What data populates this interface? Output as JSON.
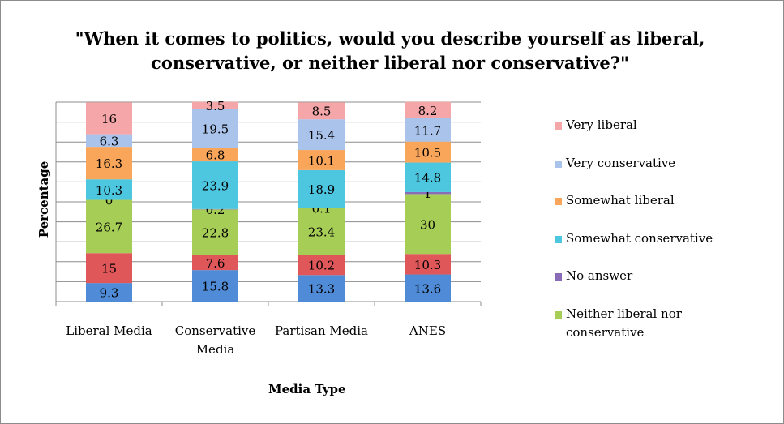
{
  "chart_data": {
    "type": "bar",
    "stacked": true,
    "title": "\"When it comes to politics, would you describe yourself as liberal, conservative, or neither liberal nor conservative?\"",
    "xlabel": "Media Type",
    "ylabel": "Percentage",
    "categories": [
      "Liberal Media",
      "Conservative Media",
      "Partisan Media",
      "ANES"
    ],
    "ylim": [
      0,
      100
    ],
    "grid": true,
    "legend_position": "right",
    "series": [
      {
        "name": "Very liberal",
        "color": "#f4a6a8",
        "values": [
          16,
          3.5,
          8.5,
          8.2
        ]
      },
      {
        "name": "Very conservative",
        "color": "#a9c3ea",
        "values": [
          6.3,
          19.5,
          15.4,
          11.7
        ]
      },
      {
        "name": "Somewhat liberal",
        "color": "#f9a65b",
        "values": [
          16.3,
          6.8,
          10.1,
          10.5
        ]
      },
      {
        "name": "Somewhat conservative",
        "color": "#4dc6e0",
        "values": [
          10.3,
          23.9,
          18.9,
          14.8
        ]
      },
      {
        "name": "No answer",
        "color": "#8a6bb8",
        "values": [
          0,
          0.2,
          0.1,
          1
        ]
      },
      {
        "name": "Neither liberal nor conservative",
        "color": "#a6ce56",
        "values": [
          26.7,
          22.8,
          23.4,
          30
        ]
      },
      {
        "name": "",
        "color": "#e0575a",
        "values": [
          15,
          7.6,
          10.2,
          10.3
        ]
      },
      {
        "name": "",
        "color": "#4f8bd6",
        "values": [
          9.3,
          15.8,
          13.3,
          13.6
        ]
      }
    ]
  }
}
